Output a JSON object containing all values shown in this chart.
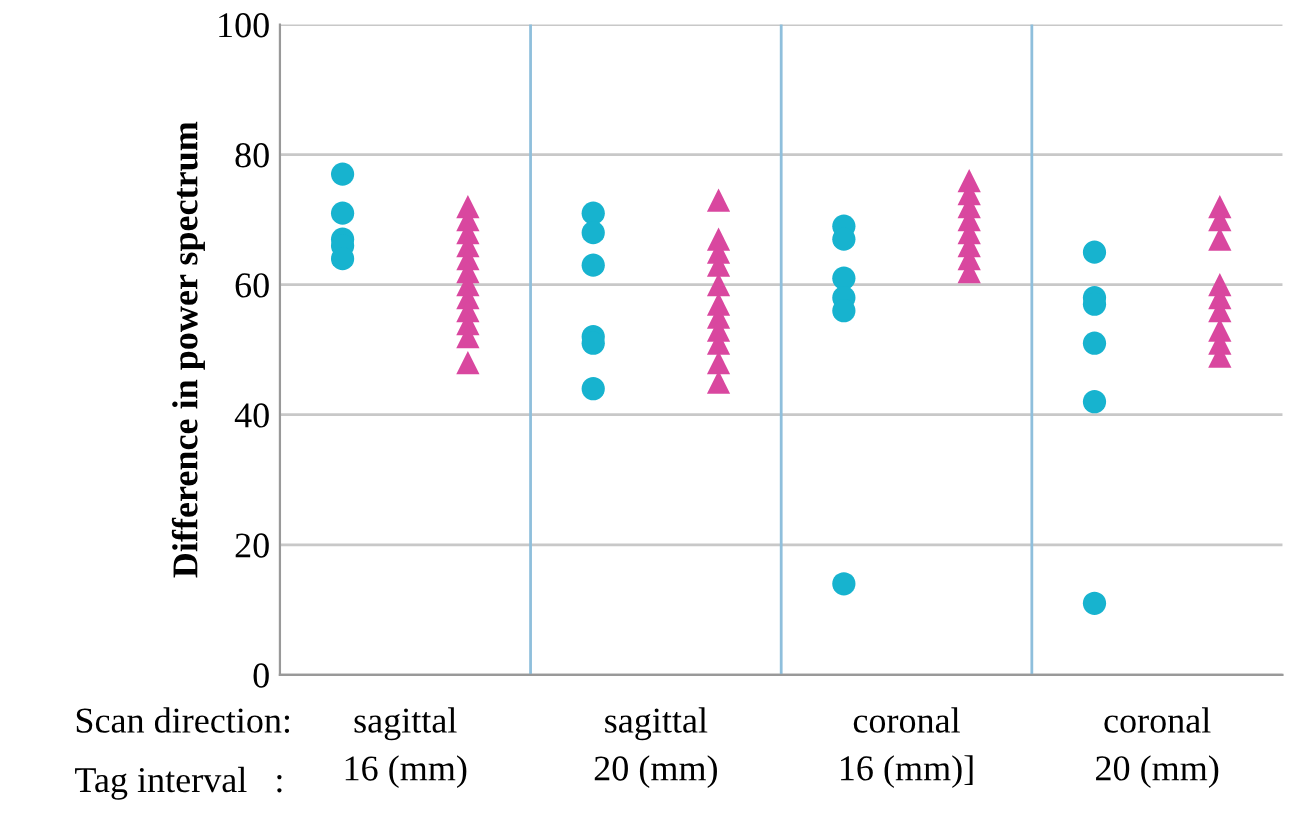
{
  "chart_data": {
    "type": "scatter",
    "ylabel": "Difference in power spectrum",
    "categories": [
      "sagittal\n16 (mm)",
      "sagittal\n20 (mm)",
      "coronal\n16 (mm)]",
      "coronal\n20 (mm)"
    ],
    "annotations": [
      "Scan direction:",
      "Tag interval   :"
    ],
    "series": [
      {
        "color": "#17b3cf",
        "marker": "circle",
        "x": [
          "sagittal\n16 (mm)",
          "sagittal\n16 (mm)",
          "sagittal\n16 (mm)",
          "sagittal\n16 (mm)",
          "sagittal\n16 (mm)",
          "sagittal\n20 (mm)",
          "sagittal\n20 (mm)",
          "sagittal\n20 (mm)",
          "sagittal\n20 (mm)",
          "sagittal\n20 (mm)",
          "sagittal\n20 (mm)",
          "coronal\n16 (mm)]",
          "coronal\n16 (mm)]",
          "coronal\n16 (mm)]",
          "coronal\n16 (mm)]",
          "coronal\n16 (mm)]",
          "coronal\n16 (mm)]",
          "coronal\n20 (mm)",
          "coronal\n20 (mm)",
          "coronal\n20 (mm)",
          "coronal\n20 (mm)",
          "coronal\n20 (mm)",
          "coronal\n20 (mm)"
        ],
        "values": [
          77,
          71,
          67,
          66,
          64,
          71,
          68,
          63,
          52,
          51,
          44,
          69,
          67,
          61,
          58,
          56,
          14,
          65,
          58,
          57,
          51,
          42,
          11
        ]
      },
      {
        "color": "#d9479f",
        "marker": "triangle",
        "x": [
          "sagittal\n16 (mm)",
          "sagittal\n16 (mm)",
          "sagittal\n16 (mm)",
          "sagittal\n16 (mm)",
          "sagittal\n16 (mm)",
          "sagittal\n16 (mm)",
          "sagittal\n16 (mm)",
          "sagittal\n16 (mm)",
          "sagittal\n16 (mm)",
          "sagittal\n16 (mm)",
          "sagittal\n16 (mm)",
          "sagittal\n16 (mm)",
          "sagittal\n20 (mm)",
          "sagittal\n20 (mm)",
          "sagittal\n20 (mm)",
          "sagittal\n20 (mm)",
          "sagittal\n20 (mm)",
          "sagittal\n20 (mm)",
          "sagittal\n20 (mm)",
          "sagittal\n20 (mm)",
          "sagittal\n20 (mm)",
          "sagittal\n20 (mm)",
          "sagittal\n20 (mm)",
          "coronal\n16 (mm)]",
          "coronal\n16 (mm)]",
          "coronal\n16 (mm)]",
          "coronal\n16 (mm)]",
          "coronal\n16 (mm)]",
          "coronal\n16 (mm)]",
          "coronal\n16 (mm)]",
          "coronal\n16 (mm)]",
          "coronal\n20 (mm)",
          "coronal\n20 (mm)",
          "coronal\n20 (mm)",
          "coronal\n20 (mm)",
          "coronal\n20 (mm)",
          "coronal\n20 (mm)",
          "coronal\n20 (mm)",
          "coronal\n20 (mm)",
          "coronal\n20 (mm)"
        ],
        "values": [
          72,
          70,
          68,
          66,
          64,
          62,
          60,
          58,
          56,
          54,
          52,
          48,
          73,
          67,
          65,
          63,
          60,
          57,
          55,
          53,
          51,
          48,
          45,
          76,
          74,
          72,
          70,
          68,
          66,
          64,
          62,
          72,
          70,
          67,
          60,
          58,
          56,
          53,
          51,
          49
        ]
      }
    ],
    "ylim": [
      0,
      100
    ],
    "yticks": [
      0,
      20,
      40,
      60,
      80,
      100
    ],
    "grid": "y"
  }
}
